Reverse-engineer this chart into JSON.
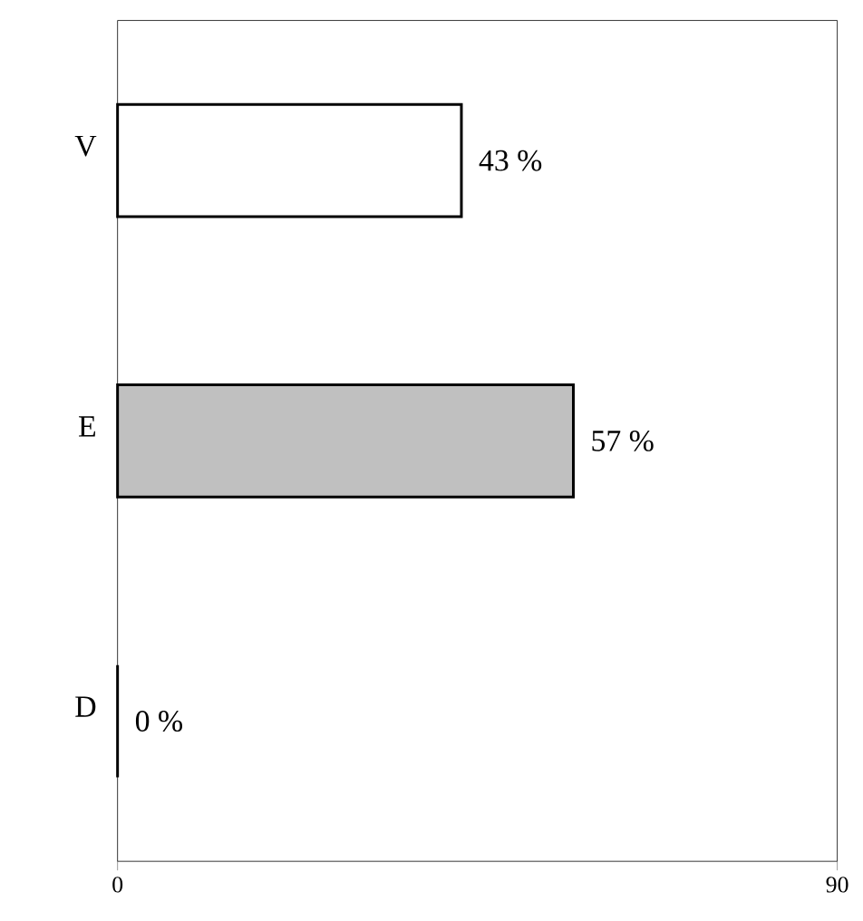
{
  "chart_data": {
    "type": "bar",
    "orientation": "horizontal",
    "categories": [
      "V",
      "E",
      "D"
    ],
    "values": [
      43,
      57,
      0
    ],
    "colors": [
      "#ffffff",
      "#c0c0c0",
      "#ffffff"
    ],
    "value_labels": [
      "43 %",
      "57 %",
      "0 %"
    ],
    "xlim": [
      0,
      90
    ],
    "xticks": [
      0,
      90
    ],
    "grid": false
  }
}
